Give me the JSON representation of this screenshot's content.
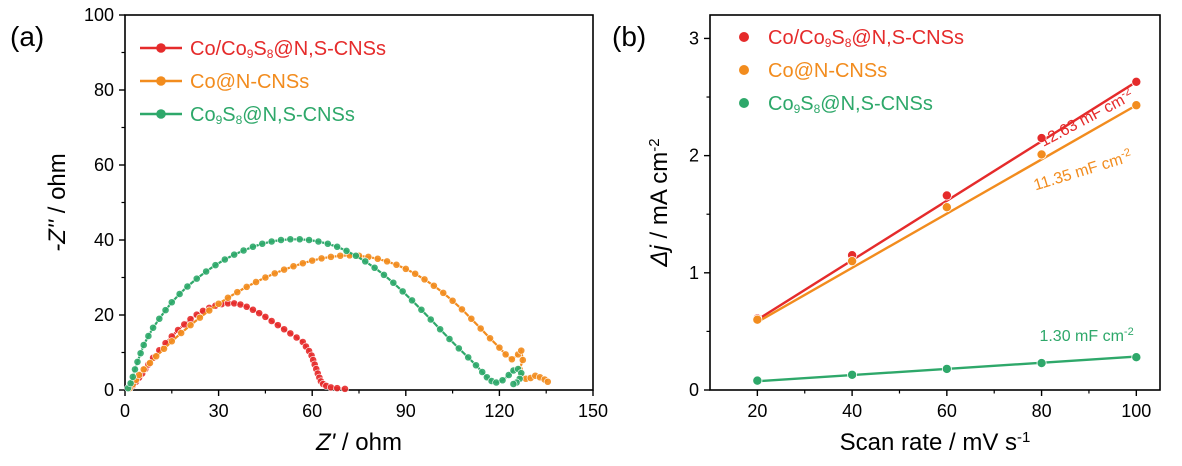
{
  "chart_data": [
    {
      "panel_label": "(a)",
      "type": "line",
      "xlabel": {
        "italic": "Z'",
        "rest": " / ohm"
      },
      "ylabel": {
        "italic": "-Z''",
        "rest": " / ohm"
      },
      "xlim": [
        0,
        150
      ],
      "ylim": [
        0,
        100
      ],
      "x_ticks": [
        0,
        30,
        60,
        90,
        120,
        150
      ],
      "y_ticks": [
        0,
        20,
        40,
        60,
        80,
        100
      ],
      "legend_position": "top-left",
      "series": [
        {
          "name": "Co/Co9S8@N,S-CNSs",
          "legend": {
            "parts": [
              [
                "Co/Co",
                "n"
              ],
              [
                "9",
                "sub"
              ],
              [
                "S",
                "n"
              ],
              [
                "8",
                "sub"
              ],
              [
                "@N,S-CNSs",
                "n"
              ]
            ]
          },
          "color": "#e52b2b",
          "points": [
            [
              1.5,
              0.5
            ],
            [
              2.5,
              1.2
            ],
            [
              3.5,
              2.2
            ],
            [
              4.5,
              3.3
            ],
            [
              5.5,
              4.4
            ],
            [
              6.5,
              5.6
            ],
            [
              7.5,
              6.8
            ],
            [
              9,
              8.6
            ],
            [
              11,
              10.6
            ],
            [
              13,
              12.5
            ],
            [
              15,
              14.3
            ],
            [
              17,
              16
            ],
            [
              19,
              17.5
            ],
            [
              21,
              18.9
            ],
            [
              23,
              20.1
            ],
            [
              25,
              21.1
            ],
            [
              27,
              21.9
            ],
            [
              29,
              22.5
            ],
            [
              31,
              22.9
            ],
            [
              33,
              23.1
            ],
            [
              35,
              23.1
            ],
            [
              37,
              22.8
            ],
            [
              39,
              22.2
            ],
            [
              41,
              21.4
            ],
            [
              43,
              20.5
            ],
            [
              45,
              19.5
            ],
            [
              47,
              18.4
            ],
            [
              49,
              17.3
            ],
            [
              51,
              16.2
            ],
            [
              53,
              15.1
            ],
            [
              55,
              14
            ],
            [
              57,
              12.8
            ],
            [
              58,
              11.6
            ],
            [
              59,
              10.4
            ],
            [
              59.8,
              9.2
            ],
            [
              60.3,
              8
            ],
            [
              60.8,
              6.8
            ],
            [
              61.3,
              5.6
            ],
            [
              61.8,
              4.4
            ],
            [
              62.3,
              3.3
            ],
            [
              62.8,
              2.3
            ],
            [
              63.5,
              1.6
            ],
            [
              64.5,
              1.1
            ],
            [
              66,
              0.7
            ],
            [
              68,
              0.5
            ],
            [
              70.5,
              0.3
            ]
          ]
        },
        {
          "name": "Co@N-CNSs",
          "legend": {
            "parts": [
              [
                "Co@N-CNSs",
                "n"
              ]
            ]
          },
          "color": "#f28c1e",
          "points": [
            [
              1.5,
              0.5
            ],
            [
              2.5,
              1.5
            ],
            [
              3.5,
              2.7
            ],
            [
              4.5,
              4
            ],
            [
              6,
              5.5
            ],
            [
              8,
              7.2
            ],
            [
              10,
              9
            ],
            [
              12.5,
              11
            ],
            [
              15,
              13
            ],
            [
              18,
              15.2
            ],
            [
              21,
              17.3
            ],
            [
              24,
              19.3
            ],
            [
              27,
              21.2
            ],
            [
              30,
              23
            ],
            [
              33,
              24.6
            ],
            [
              36,
              26.1
            ],
            [
              39,
              27.5
            ],
            [
              42,
              28.8
            ],
            [
              45,
              30
            ],
            [
              48,
              31.1
            ],
            [
              51,
              32.1
            ],
            [
              54,
              33
            ],
            [
              57,
              33.8
            ],
            [
              60,
              34.5
            ],
            [
              63,
              35.1
            ],
            [
              66,
              35.5
            ],
            [
              69,
              35.8
            ],
            [
              72,
              35.9
            ],
            [
              75,
              35.8
            ],
            [
              78,
              35.5
            ],
            [
              81,
              35
            ],
            [
              84,
              34.3
            ],
            [
              87,
              33.4
            ],
            [
              90,
              32.3
            ],
            [
              93,
              31
            ],
            [
              96,
              29.5
            ],
            [
              99,
              27.8
            ],
            [
              102,
              25.9
            ],
            [
              105,
              23.8
            ],
            [
              108,
              21.5
            ],
            [
              111,
              19
            ],
            [
              114,
              16.4
            ],
            [
              117,
              13.8
            ],
            [
              120,
              11.3
            ],
            [
              122,
              9.5
            ],
            [
              124,
              8.2
            ],
            [
              126,
              9.5
            ],
            [
              127,
              10.5
            ],
            [
              127.5,
              8
            ],
            [
              126.5,
              5.5
            ],
            [
              127,
              3.8
            ],
            [
              128.5,
              3
            ],
            [
              130,
              3.2
            ],
            [
              131.5,
              3.8
            ],
            [
              133,
              3.4
            ],
            [
              134.5,
              2.8
            ],
            [
              135.5,
              2.2
            ]
          ]
        },
        {
          "name": "Co9S8@N,S-CNSs",
          "legend": {
            "parts": [
              [
                "Co",
                "n"
              ],
              [
                "9",
                "sub"
              ],
              [
                "S",
                "n"
              ],
              [
                "8",
                "sub"
              ],
              [
                "@N,S-CNSs",
                "n"
              ]
            ]
          },
          "color": "#2ea86a",
          "points": [
            [
              1,
              0.5
            ],
            [
              1.8,
              1.8
            ],
            [
              2.5,
              3.5
            ],
            [
              3.2,
              5.5
            ],
            [
              4,
              7.5
            ],
            [
              5,
              9.8
            ],
            [
              6,
              12
            ],
            [
              7.5,
              14.4
            ],
            [
              9,
              16.6
            ],
            [
              11,
              19
            ],
            [
              13,
              21.3
            ],
            [
              15,
              23.4
            ],
            [
              17.5,
              25.6
            ],
            [
              20,
              27.6
            ],
            [
              23,
              29.7
            ],
            [
              26,
              31.6
            ],
            [
              29,
              33.3
            ],
            [
              32,
              34.8
            ],
            [
              35,
              36.1
            ],
            [
              38,
              37.2
            ],
            [
              41,
              38.2
            ],
            [
              44,
              39
            ],
            [
              47,
              39.6
            ],
            [
              50,
              40
            ],
            [
              53,
              40.2
            ],
            [
              56,
              40.2
            ],
            [
              59,
              40
            ],
            [
              62,
              39.6
            ],
            [
              65,
              39
            ],
            [
              68,
              38.2
            ],
            [
              71,
              37.1
            ],
            [
              74,
              35.8
            ],
            [
              77,
              34.3
            ],
            [
              80,
              32.6
            ],
            [
              83,
              30.7
            ],
            [
              86,
              28.6
            ],
            [
              89,
              26.3
            ],
            [
              92,
              23.9
            ],
            [
              95,
              21.4
            ],
            [
              98,
              18.8
            ],
            [
              101,
              16.2
            ],
            [
              104,
              13.6
            ],
            [
              107,
              11.1
            ],
            [
              110,
              8.7
            ],
            [
              112.5,
              6.6
            ],
            [
              114.5,
              4.8
            ],
            [
              116,
              3.4
            ],
            [
              117.5,
              2.4
            ],
            [
              119,
              2
            ],
            [
              121,
              2.6
            ],
            [
              123,
              4
            ],
            [
              124.5,
              5.2
            ],
            [
              126,
              5.6
            ],
            [
              127,
              4.5
            ],
            [
              126.5,
              3
            ],
            [
              125.5,
              2
            ],
            [
              124.5,
              1.6
            ]
          ]
        }
      ]
    },
    {
      "panel_label": "(b)",
      "type": "scatter",
      "xlabel": {
        "italic": "",
        "rest": "Scan rate / mV s",
        "sup": "-1"
      },
      "ylabel": {
        "italic": "Δj",
        "rest": " / mA cm",
        "sup": "-2"
      },
      "xlim": [
        10,
        105
      ],
      "ylim": [
        0,
        3.2
      ],
      "x_ticks": [
        20,
        40,
        60,
        80,
        100
      ],
      "y_ticks": [
        0,
        1,
        2,
        3
      ],
      "legend_position": "top-left",
      "series": [
        {
          "name": "Co/Co9S8@N,S-CNSs",
          "legend": {
            "parts": [
              [
                "Co/Co",
                "n"
              ],
              [
                "9",
                "sub"
              ],
              [
                "S",
                "n"
              ],
              [
                "8",
                "sub"
              ],
              [
                "@N,S-CNSs",
                "n"
              ]
            ]
          },
          "color": "#e52b2b",
          "x": [
            20,
            40,
            60,
            80,
            100
          ],
          "y": [
            0.61,
            1.15,
            1.66,
            2.15,
            2.63
          ],
          "fit": [
            [
              20,
              0.6
            ],
            [
              100,
              2.63
            ]
          ],
          "annotation": {
            "value": "12.63 mF cm",
            "sup": "-2",
            "at": [
              90,
              2.28
            ],
            "angle": -28
          }
        },
        {
          "name": "Co@N-CNSs",
          "legend": {
            "parts": [
              [
                "Co@N-CNSs",
                "n"
              ]
            ]
          },
          "color": "#f28c1e",
          "x": [
            20,
            40,
            60,
            80,
            100
          ],
          "y": [
            0.6,
            1.1,
            1.56,
            2.01,
            2.43
          ],
          "fit": [
            [
              20,
              0.58
            ],
            [
              100,
              2.43
            ]
          ],
          "annotation": {
            "value": "11.35 mF cm",
            "sup": "-2",
            "at": [
              89,
              1.83
            ],
            "angle": -17
          }
        },
        {
          "name": "Co9S8@N,S-CNSs",
          "legend": {
            "parts": [
              [
                "Co",
                "n"
              ],
              [
                "9",
                "sub"
              ],
              [
                "S",
                "n"
              ],
              [
                "8",
                "sub"
              ],
              [
                "@N,S-CNSs",
                "n"
              ]
            ]
          },
          "color": "#2ea86a",
          "x": [
            20,
            40,
            60,
            80,
            100
          ],
          "y": [
            0.08,
            0.13,
            0.18,
            0.23,
            0.28
          ],
          "fit": [
            [
              20,
              0.075
            ],
            [
              100,
              0.285
            ]
          ],
          "annotation": {
            "value": "1.30 mF cm",
            "sup": "-2",
            "at": [
              89.5,
              0.42
            ],
            "angle": 0
          }
        }
      ]
    }
  ]
}
